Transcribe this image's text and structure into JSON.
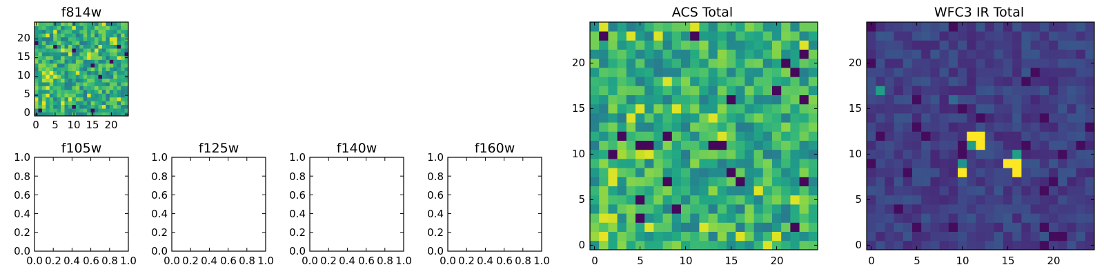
{
  "figure": {
    "title": ""
  },
  "chart_data": [
    {
      "type": "heatmap",
      "title": "f814w",
      "grid_size": 25,
      "xticks": [
        "0",
        "5",
        "10",
        "15",
        "20"
      ],
      "yticks": [
        "0",
        "5",
        "10",
        "15",
        "20"
      ],
      "colormap": "viridis",
      "description": "Noise field with yellow blobs near (3,11) and (1,1)",
      "generator": "acs_like",
      "seed": 11
    },
    {
      "type": "empty",
      "title": "f105w",
      "xticks": [
        "0.0",
        "0.2",
        "0.4",
        "0.6",
        "0.8",
        "1.0"
      ],
      "yticks": [
        "0.0",
        "0.2",
        "0.4",
        "0.6",
        "0.8",
        "1.0"
      ],
      "xlim": [
        0,
        1
      ],
      "ylim": [
        0,
        1
      ]
    },
    {
      "type": "empty",
      "title": "f125w",
      "xticks": [
        "0.0",
        "0.2",
        "0.4",
        "0.6",
        "0.8",
        "1.0"
      ],
      "yticks": [
        "0.0",
        "0.2",
        "0.4",
        "0.6",
        "0.8",
        "1.0"
      ],
      "xlim": [
        0,
        1
      ],
      "ylim": [
        0,
        1
      ]
    },
    {
      "type": "empty",
      "title": "f140w",
      "xticks": [
        "0.0",
        "0.2",
        "0.4",
        "0.6",
        "0.8",
        "1.0"
      ],
      "yticks": [
        "0.0",
        "0.2",
        "0.4",
        "0.6",
        "0.8",
        "1.0"
      ],
      "xlim": [
        0,
        1
      ],
      "ylim": [
        0,
        1
      ]
    },
    {
      "type": "empty",
      "title": "f160w",
      "xticks": [
        "0.0",
        "0.2",
        "0.4",
        "0.6",
        "0.8",
        "1.0"
      ],
      "yticks": [
        "0.0",
        "0.2",
        "0.4",
        "0.6",
        "0.8",
        "1.0"
      ],
      "xlim": [
        0,
        1
      ],
      "ylim": [
        0,
        1
      ]
    },
    {
      "type": "heatmap",
      "title": "ACS Total",
      "grid_size": 25,
      "xticks": [
        "0",
        "5",
        "10",
        "15",
        "20"
      ],
      "yticks": [
        "0",
        "5",
        "10",
        "15",
        "20"
      ],
      "colormap": "viridis",
      "description": "Bright noise field, yellow blob near (4,11) and (2,2)",
      "generator": "acs_like",
      "seed": 7
    },
    {
      "type": "heatmap",
      "title": "WFC3 IR Total",
      "grid_size": 25,
      "xticks": [
        "0",
        "5",
        "10",
        "15",
        "20"
      ],
      "yticks": [
        "0",
        "5",
        "10",
        "15",
        "20"
      ],
      "colormap": "viridis",
      "description": "Dark noise field with bright sources at (11-12, 11-12), (10, 8-9), (16, 8-9)",
      "generator": "ir_like",
      "seed": 3,
      "hot_pixels": [
        {
          "x": 11,
          "y": 12,
          "v": 1.0
        },
        {
          "x": 12,
          "y": 12,
          "v": 1.0
        },
        {
          "x": 11,
          "y": 11,
          "v": 0.55
        },
        {
          "x": 12,
          "y": 11,
          "v": 1.0
        },
        {
          "x": 10,
          "y": 9,
          "v": 0.5
        },
        {
          "x": 10,
          "y": 8,
          "v": 1.0
        },
        {
          "x": 16,
          "y": 9,
          "v": 1.0
        },
        {
          "x": 16,
          "y": 10,
          "v": 0.55
        },
        {
          "x": 15,
          "y": 9,
          "v": 1.0
        },
        {
          "x": 16,
          "y": 8,
          "v": 1.0
        },
        {
          "x": 1,
          "y": 17,
          "v": 0.55
        },
        {
          "x": 9,
          "y": 16,
          "v": 0.35
        }
      ]
    }
  ]
}
